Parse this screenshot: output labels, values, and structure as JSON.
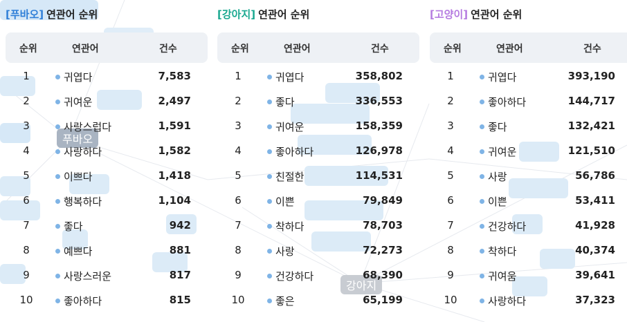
{
  "headers": {
    "rank": "순위",
    "keyword": "연관어",
    "count": "건수"
  },
  "title_suffix": "연관어 순위",
  "colors": {
    "pubao": "#2f7fd8",
    "dog": "#1aa890",
    "cat": "#b57be0",
    "dot": "#7fb4e6"
  },
  "panels": [
    {
      "tag": "[푸바오]",
      "rows": [
        {
          "rank": "1",
          "word": "귀엽다",
          "count": "7,583"
        },
        {
          "rank": "2",
          "word": "귀여운",
          "count": "2,497"
        },
        {
          "rank": "3",
          "word": "사랑스럽다",
          "count": "1,591"
        },
        {
          "rank": "4",
          "word": "사랑하다",
          "count": "1,582"
        },
        {
          "rank": "5",
          "word": "이쁘다",
          "count": "1,418"
        },
        {
          "rank": "6",
          "word": "행복하다",
          "count": "1,104"
        },
        {
          "rank": "7",
          "word": "좋다",
          "count": "942"
        },
        {
          "rank": "8",
          "word": "예쁘다",
          "count": "881"
        },
        {
          "rank": "9",
          "word": "사랑스러운",
          "count": "817"
        },
        {
          "rank": "10",
          "word": "좋아하다",
          "count": "815"
        }
      ]
    },
    {
      "tag": "[강아지]",
      "rows": [
        {
          "rank": "1",
          "word": "귀엽다",
          "count": "358,802"
        },
        {
          "rank": "2",
          "word": "좋다",
          "count": "336,553"
        },
        {
          "rank": "3",
          "word": "귀여운",
          "count": "158,359"
        },
        {
          "rank": "4",
          "word": "좋아하다",
          "count": "126,978"
        },
        {
          "rank": "5",
          "word": "친절한",
          "count": "114,531"
        },
        {
          "rank": "6",
          "word": "이쁜",
          "count": "79,849"
        },
        {
          "rank": "7",
          "word": "착하다",
          "count": "78,703"
        },
        {
          "rank": "8",
          "word": "사랑",
          "count": "72,273"
        },
        {
          "rank": "9",
          "word": "건강하다",
          "count": "68,390"
        },
        {
          "rank": "10",
          "word": "좋은",
          "count": "65,199"
        }
      ]
    },
    {
      "tag": "[고양이]",
      "rows": [
        {
          "rank": "1",
          "word": "귀엽다",
          "count": "393,190"
        },
        {
          "rank": "2",
          "word": "좋아하다",
          "count": "144,717"
        },
        {
          "rank": "3",
          "word": "좋다",
          "count": "132,421"
        },
        {
          "rank": "4",
          "word": "귀여운",
          "count": "121,510"
        },
        {
          "rank": "5",
          "word": "사랑",
          "count": "56,786"
        },
        {
          "rank": "6",
          "word": "이쁜",
          "count": "53,411"
        },
        {
          "rank": "7",
          "word": "건강하다",
          "count": "41,928"
        },
        {
          "rank": "8",
          "word": "착하다",
          "count": "40,374"
        },
        {
          "rank": "9",
          "word": "귀여움",
          "count": "39,641"
        },
        {
          "rank": "10",
          "word": "사랑하다",
          "count": "37,323"
        }
      ]
    }
  ],
  "cloud_nodes": [
    {
      "label": "푸바오",
      "fill": "#a9b4c2"
    },
    {
      "label": "강아지",
      "fill": "#a9b4c2"
    }
  ]
}
